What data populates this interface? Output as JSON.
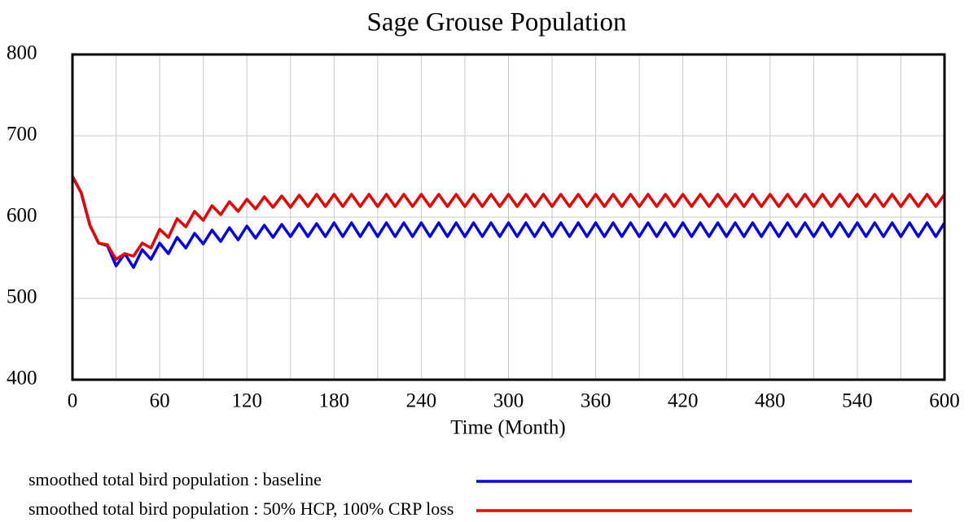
{
  "chart_data": {
    "type": "line",
    "title": "Sage Grouse Population",
    "x_label": "Time (Month)",
    "x": [
      0,
      6,
      12,
      18,
      24,
      30,
      36,
      42,
      48,
      54,
      60,
      66,
      72,
      78,
      84,
      90,
      96,
      102,
      108,
      114,
      120,
      126,
      132,
      138,
      144,
      150,
      156,
      162,
      168,
      174,
      180,
      186,
      192,
      198,
      204,
      210,
      216,
      222,
      228,
      234,
      240,
      246,
      252,
      258,
      264,
      270,
      276,
      282,
      288,
      294,
      300,
      306,
      312,
      318,
      324,
      330,
      336,
      342,
      348,
      354,
      360,
      366,
      372,
      378,
      384,
      390,
      396,
      402,
      408,
      414,
      420,
      426,
      432,
      438,
      444,
      450,
      456,
      462,
      468,
      474,
      480,
      486,
      492,
      498,
      504,
      510,
      516,
      522,
      528,
      534,
      540,
      546,
      552,
      558,
      564,
      570,
      576,
      582,
      588,
      594,
      600
    ],
    "series": [
      {
        "name": "smoothed total bird population : baseline",
        "color": "#0000ee",
        "values": [
          650,
          630,
          590,
          568,
          565,
          540,
          555,
          538,
          560,
          548,
          568,
          555,
          575,
          562,
          580,
          567,
          584,
          570,
          587,
          572,
          589,
          574,
          590,
          575,
          591,
          576,
          592,
          576,
          592,
          576,
          593,
          576,
          593,
          576,
          593,
          576,
          593,
          576,
          593,
          576,
          593,
          576,
          593,
          576,
          593,
          576,
          593,
          576,
          593,
          576,
          593,
          576,
          593,
          576,
          593,
          576,
          593,
          576,
          593,
          576,
          593,
          576,
          593,
          576,
          593,
          576,
          593,
          576,
          593,
          576,
          593,
          576,
          593,
          576,
          593,
          576,
          593,
          576,
          593,
          576,
          593,
          576,
          593,
          576,
          593,
          576,
          593,
          576,
          593,
          576,
          593,
          576,
          593,
          576,
          593,
          576,
          593,
          576,
          593,
          576,
          593
        ]
      },
      {
        "name": "smoothed total bird population : 50% HCP, 100% CRP loss",
        "color": "#ee0000",
        "values": [
          650,
          630,
          590,
          568,
          566,
          548,
          555,
          552,
          568,
          562,
          585,
          575,
          598,
          588,
          607,
          596,
          614,
          603,
          619,
          607,
          622,
          610,
          625,
          612,
          626,
          612,
          627,
          613,
          628,
          613,
          628,
          613,
          628,
          613,
          628,
          613,
          628,
          613,
          628,
          613,
          628,
          613,
          628,
          613,
          628,
          613,
          628,
          613,
          628,
          613,
          628,
          613,
          628,
          613,
          628,
          613,
          628,
          613,
          628,
          613,
          628,
          613,
          628,
          613,
          628,
          613,
          628,
          613,
          628,
          613,
          628,
          613,
          628,
          613,
          628,
          613,
          628,
          613,
          628,
          613,
          628,
          613,
          628,
          613,
          628,
          613,
          628,
          613,
          628,
          613,
          628,
          613,
          628,
          613,
          628,
          613,
          628,
          613,
          628,
          613,
          628
        ]
      }
    ],
    "xlim": [
      0,
      600
    ],
    "xticks": [
      0,
      60,
      120,
      180,
      240,
      300,
      360,
      420,
      480,
      540,
      600
    ],
    "ylim": [
      400,
      800
    ],
    "yticks": [
      400,
      500,
      600,
      700,
      800
    ],
    "grid": true,
    "legend": "bottom"
  }
}
